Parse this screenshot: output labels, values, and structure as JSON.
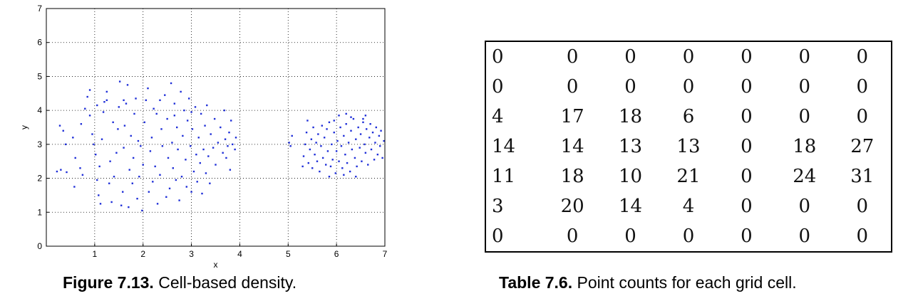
{
  "figure": {
    "caption_label": "Figure 7.13.",
    "caption_text": "Cell-based density."
  },
  "table": {
    "caption_label": "Table 7.6.",
    "caption_text": "Point counts for each grid cell.",
    "rows": [
      [
        "0",
        "0",
        "0",
        "0",
        "0",
        "0",
        "0"
      ],
      [
        "0",
        "0",
        "0",
        "0",
        "0",
        "0",
        "0"
      ],
      [
        "4",
        "17",
        "18",
        "6",
        "0",
        "0",
        "0"
      ],
      [
        "14",
        "14",
        "13",
        "13",
        "0",
        "18",
        "27"
      ],
      [
        "11",
        "18",
        "10",
        "21",
        "0",
        "24",
        "31"
      ],
      [
        "3",
        "20",
        "14",
        "4",
        "0",
        "0",
        "0"
      ],
      [
        "0",
        "0",
        "0",
        "0",
        "0",
        "0",
        "0"
      ]
    ]
  },
  "chart_data": {
    "type": "scatter",
    "title": "",
    "xlabel": "x",
    "ylabel": "y",
    "xlim": [
      0,
      7
    ],
    "ylim": [
      0,
      7
    ],
    "xticks": [
      1,
      2,
      3,
      4,
      5,
      6,
      7
    ],
    "yticks": [
      0,
      1,
      2,
      3,
      4,
      5,
      6,
      7
    ],
    "grid": "dotted",
    "marker_color": "#1f2fd8",
    "series": [
      {
        "points": [
          [
            0.28,
            3.55
          ],
          [
            0.35,
            3.4
          ],
          [
            0.22,
            2.2
          ],
          [
            0.3,
            2.25
          ],
          [
            0.42,
            2.18
          ],
          [
            0.4,
            3.0
          ],
          [
            0.55,
            3.2
          ],
          [
            0.6,
            2.6
          ],
          [
            0.58,
            1.75
          ],
          [
            0.7,
            2.3
          ],
          [
            0.75,
            2.1
          ],
          [
            0.72,
            3.6
          ],
          [
            0.8,
            4.05
          ],
          [
            0.85,
            4.4
          ],
          [
            0.9,
            4.6
          ],
          [
            0.95,
            3.3
          ],
          [
            0.98,
            3.0
          ],
          [
            1.02,
            2.7
          ],
          [
            1.05,
            1.95
          ],
          [
            1.08,
            1.5
          ],
          [
            1.12,
            1.25
          ],
          [
            1.1,
            2.35
          ],
          [
            1.15,
            3.15
          ],
          [
            1.18,
            3.95
          ],
          [
            1.2,
            4.25
          ],
          [
            1.25,
            4.55
          ],
          [
            1.3,
            1.85
          ],
          [
            1.32,
            2.5
          ],
          [
            1.35,
            1.3
          ],
          [
            1.38,
            3.65
          ],
          [
            1.4,
            2.05
          ],
          [
            1.45,
            2.75
          ],
          [
            1.48,
            3.45
          ],
          [
            1.5,
            4.1
          ],
          [
            1.52,
            4.85
          ],
          [
            1.55,
            1.2
          ],
          [
            1.58,
            1.6
          ],
          [
            1.6,
            2.9
          ],
          [
            1.62,
            3.55
          ],
          [
            1.65,
            4.2
          ],
          [
            1.68,
            4.75
          ],
          [
            1.7,
            1.15
          ],
          [
            1.72,
            2.25
          ],
          [
            1.75,
            3.25
          ],
          [
            1.78,
            1.85
          ],
          [
            1.8,
            2.6
          ],
          [
            1.82,
            3.9
          ],
          [
            1.85,
            4.35
          ],
          [
            1.88,
            1.4
          ],
          [
            1.9,
            3.1
          ],
          [
            1.92,
            2.05
          ],
          [
            1.95,
            2.95
          ],
          [
            1.98,
            1.05
          ],
          [
            2.0,
            2.4
          ],
          [
            2.03,
            3.65
          ],
          [
            2.06,
            4.3
          ],
          [
            2.1,
            4.65
          ],
          [
            2.12,
            1.6
          ],
          [
            2.15,
            2.8
          ],
          [
            2.18,
            3.2
          ],
          [
            2.2,
            1.9
          ],
          [
            2.22,
            4.05
          ],
          [
            2.25,
            2.35
          ],
          [
            2.28,
            3.9
          ],
          [
            2.3,
            1.25
          ],
          [
            2.35,
            2.1
          ],
          [
            2.38,
            3.45
          ],
          [
            2.4,
            2.95
          ],
          [
            2.45,
            4.45
          ],
          [
            2.48,
            1.45
          ],
          [
            2.5,
            3.75
          ],
          [
            2.52,
            2.6
          ],
          [
            2.55,
            1.7
          ],
          [
            2.58,
            4.8
          ],
          [
            2.6,
            3.05
          ],
          [
            2.62,
            2.3
          ],
          [
            2.65,
            4.2
          ],
          [
            2.68,
            1.95
          ],
          [
            2.7,
            3.5
          ],
          [
            2.72,
            2.85
          ],
          [
            2.75,
            1.35
          ],
          [
            2.78,
            4.55
          ],
          [
            2.8,
            2.05
          ],
          [
            2.82,
            3.25
          ],
          [
            2.85,
            4.0
          ],
          [
            2.88,
            2.55
          ],
          [
            2.9,
            1.75
          ],
          [
            2.92,
            3.7
          ],
          [
            2.95,
            4.35
          ],
          [
            2.98,
            2.95
          ],
          [
            3.0,
            1.6
          ],
          [
            3.02,
            3.45
          ],
          [
            3.05,
            2.2
          ],
          [
            3.08,
            4.1
          ],
          [
            3.1,
            2.7
          ],
          [
            3.12,
            1.9
          ],
          [
            3.15,
            3.2
          ],
          [
            3.18,
            2.45
          ],
          [
            3.2,
            3.9
          ],
          [
            3.22,
            1.55
          ],
          [
            3.25,
            2.85
          ],
          [
            3.28,
            3.55
          ],
          [
            3.3,
            2.15
          ],
          [
            3.32,
            4.15
          ],
          [
            3.35,
            2.65
          ],
          [
            3.38,
            1.85
          ],
          [
            3.4,
            3.3
          ],
          [
            3.45,
            2.9
          ],
          [
            3.48,
            3.75
          ],
          [
            3.5,
            2.4
          ],
          [
            3.55,
            3.05
          ],
          [
            3.6,
            3.5
          ],
          [
            3.65,
            2.75
          ],
          [
            3.68,
            4.0
          ],
          [
            3.7,
            3.15
          ],
          [
            3.72,
            2.6
          ],
          [
            3.75,
            2.95
          ],
          [
            3.78,
            3.35
          ],
          [
            3.8,
            2.25
          ],
          [
            3.82,
            3.7
          ],
          [
            3.85,
            3.0
          ],
          [
            3.9,
            2.85
          ],
          [
            3.92,
            3.2
          ],
          [
            1.25,
            4.3
          ],
          [
            1.6,
            4.3
          ],
          [
            2.35,
            4.3
          ],
          [
            2.65,
            3.85
          ],
          [
            3.0,
            3.95
          ],
          [
            1.05,
            4.15
          ],
          [
            0.9,
            3.85
          ]
        ]
      },
      {
        "points": [
          [
            5.02,
            3.05
          ],
          [
            5.05,
            2.95
          ],
          [
            5.08,
            3.25
          ],
          [
            5.3,
            2.35
          ],
          [
            5.32,
            2.65
          ],
          [
            5.35,
            3.0
          ],
          [
            5.38,
            3.35
          ],
          [
            5.4,
            3.7
          ],
          [
            5.42,
            2.45
          ],
          [
            5.45,
            2.85
          ],
          [
            5.48,
            3.15
          ],
          [
            5.5,
            2.3
          ],
          [
            5.52,
            3.5
          ],
          [
            5.55,
            2.7
          ],
          [
            5.58,
            3.05
          ],
          [
            5.6,
            2.5
          ],
          [
            5.62,
            3.3
          ],
          [
            5.65,
            2.2
          ],
          [
            5.68,
            2.95
          ],
          [
            5.7,
            3.55
          ],
          [
            5.72,
            2.6
          ],
          [
            5.75,
            3.2
          ],
          [
            5.78,
            2.4
          ],
          [
            5.8,
            3.45
          ],
          [
            5.82,
            2.8
          ],
          [
            5.85,
            3.65
          ],
          [
            5.88,
            2.35
          ],
          [
            5.9,
            3.0
          ],
          [
            5.92,
            2.55
          ],
          [
            5.95,
            3.35
          ],
          [
            5.98,
            2.15
          ],
          [
            6.0,
            2.8
          ],
          [
            6.02,
            3.1
          ],
          [
            6.05,
            2.5
          ],
          [
            6.08,
            3.5
          ],
          [
            6.1,
            2.95
          ],
          [
            6.12,
            2.3
          ],
          [
            6.15,
            3.25
          ],
          [
            6.18,
            2.7
          ],
          [
            6.2,
            3.6
          ],
          [
            6.22,
            2.45
          ],
          [
            6.25,
            3.05
          ],
          [
            6.28,
            2.2
          ],
          [
            6.3,
            3.4
          ],
          [
            6.32,
            2.85
          ],
          [
            6.35,
            3.75
          ],
          [
            6.38,
            2.6
          ],
          [
            6.4,
            3.15
          ],
          [
            6.42,
            2.35
          ],
          [
            6.45,
            3.5
          ],
          [
            6.48,
            2.9
          ],
          [
            6.5,
            3.3
          ],
          [
            6.52,
            2.5
          ],
          [
            6.55,
            3.65
          ],
          [
            6.58,
            3.0
          ],
          [
            6.6,
            2.75
          ],
          [
            6.62,
            3.45
          ],
          [
            6.65,
            2.4
          ],
          [
            6.68,
            3.2
          ],
          [
            6.7,
            3.6
          ],
          [
            6.72,
            2.85
          ],
          [
            6.75,
            3.35
          ],
          [
            6.78,
            2.55
          ],
          [
            6.8,
            3.05
          ],
          [
            6.82,
            3.5
          ],
          [
            6.85,
            2.7
          ],
          [
            6.88,
            3.25
          ],
          [
            6.9,
            2.95
          ],
          [
            6.92,
            3.4
          ],
          [
            6.95,
            2.6
          ],
          [
            6.98,
            3.1
          ],
          [
            6.05,
            3.85
          ],
          [
            6.3,
            3.8
          ],
          [
            6.55,
            3.75
          ],
          [
            5.95,
            3.7
          ],
          [
            6.15,
            2.1
          ],
          [
            6.4,
            2.05
          ],
          [
            5.85,
            2.05
          ],
          [
            6.6,
            3.85
          ],
          [
            6.2,
            3.9
          ]
        ]
      }
    ]
  }
}
